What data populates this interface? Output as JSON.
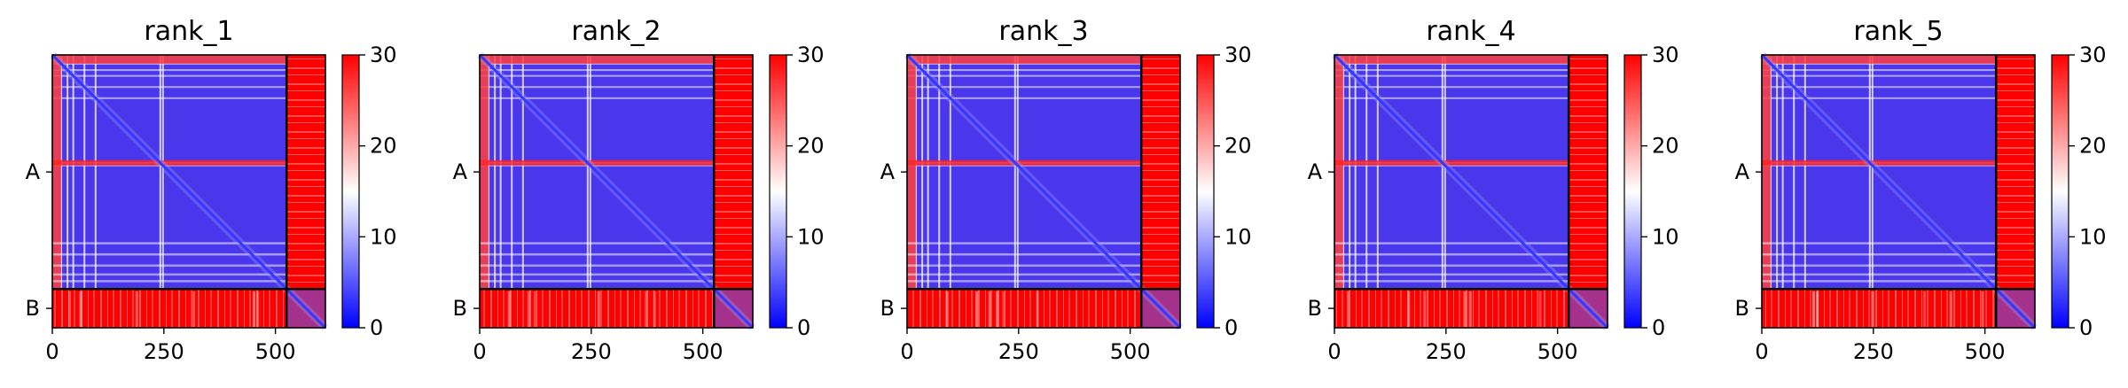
{
  "chart_data": {
    "type": "heatmap",
    "colormap": {
      "name": "bwr",
      "low": "#0000ff",
      "mid": "#ffffff",
      "high": "#ff0000"
    },
    "colorbar": {
      "range": [
        0,
        30
      ],
      "ticks": [
        "0",
        "10",
        "20",
        "30"
      ]
    },
    "x_range": [
      0,
      612
    ],
    "x_ticks": [
      "0",
      "250",
      "500"
    ],
    "chain_boundary": 525,
    "chain_labels": [
      "A",
      "B"
    ],
    "panels": [
      {
        "title": "rank_1"
      },
      {
        "title": "rank_2"
      },
      {
        "title": "rank_3"
      },
      {
        "title": "rank_4"
      },
      {
        "title": "rank_5"
      }
    ]
  }
}
